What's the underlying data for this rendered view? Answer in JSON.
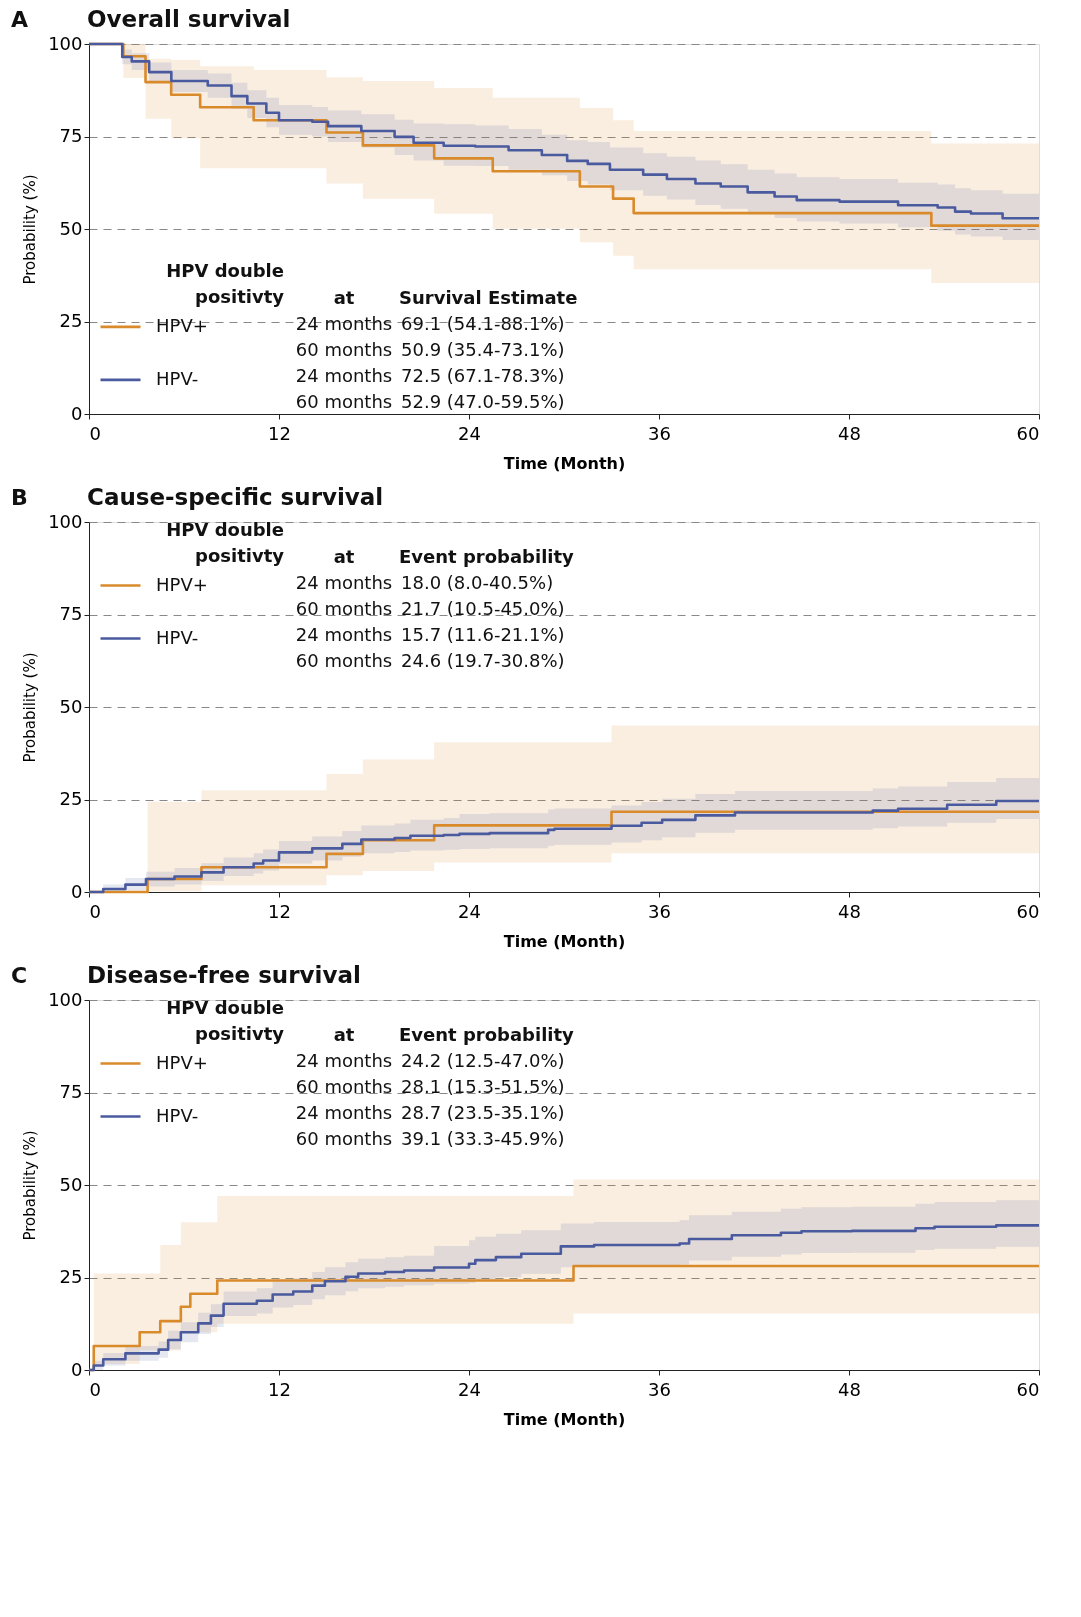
{
  "chart_data": [
    {
      "type": "step",
      "title": "Overall survival",
      "xlabel": "Time (Month)",
      "ylabel": "Probability (%)",
      "legend_title": "HPV double\npositivty",
      "legend": "bottom left",
      "grid": "y",
      "xlim": [
        0,
        60
      ],
      "ylim": [
        0,
        100
      ],
      "xticks": [
        0,
        12,
        24,
        36,
        48,
        60
      ],
      "yticks": [
        0,
        25,
        50,
        75,
        100
      ],
      "annotations": [
        "A",
        "at",
        "Survival Estimate",
        "24 months",
        "69.1 (54.1-88.1%)",
        "60 months",
        "50.9 (35.4-73.1%)",
        "24 months",
        "72.5 (67.1-78.3%)",
        "60 months",
        "52.9 (47.0-59.5%)"
      ],
      "series": [
        {
          "name": "HPV+",
          "color": "#d98a2b",
          "x": [
            0,
            2.17,
            3.57,
            5.19,
            7.02,
            10.4,
            15.0,
            17.3,
            21.8,
            25.5,
            31.0,
            33.1,
            34.4,
            53.2,
            60
          ],
          "values": [
            100,
            96.7,
            89.7,
            86.3,
            82.9,
            79.4,
            76.1,
            72.6,
            69.1,
            65.6,
            61.5,
            58.2,
            54.3,
            50.9,
            50.9
          ],
          "lower": [
            100,
            90.8,
            79.8,
            74.5,
            66.4,
            66.4,
            62.3,
            58.2,
            54.1,
            50.1,
            46.4,
            42.8,
            39.1,
            35.4,
            35.4
          ],
          "upper": [
            100,
            100,
            96,
            95.7,
            94,
            93,
            91,
            90,
            88.1,
            85.5,
            82.7,
            79.4,
            76.5,
            73.1,
            73.1
          ]
        },
        {
          "name": "HPV-",
          "color": "#4a5a9e",
          "x": [
            0,
            2.1,
            2.7,
            3.8,
            5.2,
            7.5,
            9.0,
            10.0,
            11.2,
            12.0,
            14.1,
            15.1,
            17.2,
            19.3,
            20.5,
            22.4,
            24.4,
            26.5,
            28.6,
            30.2,
            31.5,
            32.9,
            35.0,
            36.5,
            38.3,
            39.9,
            41.6,
            43.3,
            44.7,
            47.4,
            51.1,
            53.6,
            54.7,
            55.7,
            57.7,
            60
          ],
          "values": [
            100,
            96.5,
            95.3,
            92.4,
            90.0,
            88.8,
            85.9,
            83.9,
            81.4,
            79.4,
            79.0,
            77.8,
            76.5,
            74.9,
            73.3,
            72.5,
            72.3,
            71.3,
            70.0,
            68.4,
            67.6,
            66.0,
            64.7,
            63.5,
            62.3,
            61.5,
            59.9,
            58.8,
            57.8,
            57.4,
            56.4,
            55.8,
            54.7,
            54.2,
            52.9,
            52.9
          ],
          "lower": [
            100,
            94.5,
            93,
            89.5,
            87,
            85.5,
            82.5,
            80,
            77.5,
            75.5,
            75,
            73.5,
            72,
            70,
            68.5,
            67.1,
            67,
            66,
            64.5,
            63,
            62,
            60.5,
            59,
            58,
            56.5,
            55.5,
            54,
            53,
            52,
            51.5,
            50.5,
            49.5,
            48.5,
            48,
            47.0,
            47.0
          ],
          "upper": [
            100,
            98.5,
            97.5,
            95,
            93,
            92,
            89.5,
            87.5,
            85.5,
            83.5,
            83,
            82,
            81,
            79.5,
            78.5,
            78.3,
            78,
            77,
            75.5,
            74,
            73.5,
            72,
            70.5,
            69.5,
            68.5,
            67.5,
            66,
            65,
            64,
            63.5,
            62.5,
            62,
            61,
            60.5,
            59.5,
            59.5
          ]
        }
      ]
    },
    {
      "type": "step",
      "title": "Cause-specific survival",
      "xlabel": "Time (Month)",
      "ylabel": "Probability (%)",
      "legend_title": "HPV double\npositivty",
      "legend": "top left",
      "grid": "y",
      "xlim": [
        0,
        60
      ],
      "ylim": [
        0,
        100
      ],
      "xticks": [
        0,
        12,
        24,
        36,
        48,
        60
      ],
      "yticks": [
        0,
        25,
        50,
        75,
        100
      ],
      "annotations": [
        "B",
        "at",
        "Event probability",
        "24 months",
        "18.0 (8.0-40.5%)",
        "60 months",
        "21.7 (10.5-45.0%)",
        "24 months",
        "15.7 (11.6-21.1%)",
        "60 months",
        "24.6 (19.7-30.8%)"
      ],
      "series": [
        {
          "name": "HPV+",
          "color": "#d98a2b",
          "x": [
            0,
            3.7,
            7.1,
            15.0,
            17.3,
            21.8,
            33.0,
            60
          ],
          "values": [
            0,
            3.5,
            6.7,
            10.3,
            14.0,
            18.0,
            21.7,
            21.7
          ],
          "lower": [
            0,
            0.2,
            1.8,
            4.5,
            5.7,
            8.0,
            10.5,
            10.5
          ],
          "upper": [
            0,
            24.4,
            27.5,
            31.9,
            35.8,
            40.5,
            45.0,
            45.0
          ]
        },
        {
          "name": "HPV-",
          "color": "#4a5a9e",
          "x": [
            0,
            0.9,
            2.3,
            3.6,
            5.4,
            7.1,
            8.5,
            10.4,
            11.0,
            12.0,
            14.1,
            16.0,
            17.2,
            19.3,
            20.3,
            22.4,
            23.4,
            25.3,
            29.0,
            29.4,
            33.0,
            34.9,
            36.2,
            38.3,
            40.8,
            49.5,
            51.1,
            54.2,
            57.3,
            60
          ],
          "values": [
            0,
            0.8,
            2.0,
            3.5,
            4.2,
            5.3,
            6.7,
            7.7,
            8.5,
            10.7,
            11.8,
            13.0,
            14.2,
            14.6,
            15.2,
            15.4,
            15.7,
            15.9,
            16.8,
            17.1,
            17.9,
            18.7,
            19.5,
            20.7,
            21.5,
            22.0,
            22.5,
            23.6,
            24.6,
            24.6
          ],
          "lower": [
            0,
            0,
            0.5,
            1.5,
            2,
            3,
            4.3,
            5,
            5.8,
            7.7,
            8.5,
            9.5,
            10.5,
            10.8,
            11.2,
            11.4,
            11.6,
            11.8,
            12.5,
            12.8,
            13.4,
            14,
            14.8,
            16,
            16.8,
            17.2,
            17.7,
            18.7,
            19.7,
            19.7
          ],
          "upper": [
            0,
            2,
            3.8,
            5.5,
            6.5,
            7.8,
            9.3,
            10.5,
            11.5,
            13.8,
            15,
            16.5,
            18,
            18.5,
            19.5,
            20,
            21.1,
            21.3,
            22.3,
            22.6,
            23.4,
            24.3,
            25.2,
            26.5,
            27.3,
            28,
            28.5,
            29.7,
            30.8,
            30.8
          ]
        }
      ]
    },
    {
      "type": "step",
      "title": "Disease-free survival",
      "xlabel": "Time (Month)",
      "ylabel": "Probability (%)",
      "legend_title": "HPV double\npositivty",
      "legend": "top left",
      "grid": "y",
      "xlim": [
        0,
        60
      ],
      "ylim": [
        0,
        100
      ],
      "xticks": [
        0,
        12,
        24,
        36,
        48,
        60
      ],
      "yticks": [
        0,
        25,
        50,
        75,
        100
      ],
      "annotations": [
        "C",
        "at",
        "Event probability",
        "24 months",
        "24.2 (12.5-47.0%)",
        "60 months",
        "28.1 (15.3-51.5%)",
        "24 months",
        "28.7 (23.5-35.1%)",
        "60 months",
        "39.1 (33.3-45.9%)"
      ],
      "series": [
        {
          "name": "HPV+",
          "color": "#d98a2b",
          "x": [
            0,
            0.3,
            3.2,
            4.5,
            5.8,
            6.4,
            8.1,
            30.6,
            60
          ],
          "values": [
            0,
            6.5,
            10.2,
            13.2,
            17.1,
            20.6,
            24.2,
            28.1,
            28.1
          ],
          "lower": [
            0,
            1.6,
            5.3,
            5.3,
            10.2,
            10.2,
            12.5,
            15.3,
            15.3
          ],
          "upper": [
            0,
            26.1,
            26.1,
            33.8,
            39.9,
            39.9,
            47.0,
            51.5,
            51.5
          ]
        },
        {
          "name": "HPV-",
          "color": "#4a5a9e",
          "x": [
            0,
            0.3,
            0.9,
            2.3,
            4.4,
            5.0,
            5.8,
            6.9,
            7.7,
            8.5,
            10.6,
            11.6,
            12.9,
            14.1,
            14.9,
            16.2,
            17.0,
            18.7,
            19.9,
            21.8,
            24.0,
            24.4,
            25.7,
            27.3,
            29.8,
            31.9,
            37.3,
            37.9,
            40.6,
            43.7,
            45.0,
            48.2,
            52.2,
            53.4,
            57.3,
            60
          ],
          "values": [
            0,
            1.2,
            2.9,
            4.5,
            5.5,
            8.1,
            10.2,
            12.6,
            14.7,
            17.9,
            18.7,
            20.4,
            21.2,
            22.8,
            24.0,
            25.2,
            26.1,
            26.5,
            26.9,
            27.7,
            28.7,
            29.7,
            30.5,
            31.4,
            33.4,
            33.8,
            34.2,
            35.4,
            36.4,
            37.1,
            37.5,
            37.6,
            38.3,
            38.7,
            39.1,
            39.1
          ],
          "lower": [
            0,
            0,
            1.2,
            2.5,
            3.3,
            5.6,
            7.5,
            9.7,
            11.6,
            14.6,
            15.3,
            16.9,
            17.6,
            19.1,
            20.2,
            21.3,
            22.1,
            22.5,
            22.9,
            23.3,
            23.5,
            24.4,
            25.1,
            26,
            27.8,
            28.2,
            28.5,
            29.6,
            30.6,
            31.2,
            31.6,
            31.7,
            32.4,
            32.8,
            33.3,
            33.3
          ],
          "upper": [
            0,
            2.5,
            4.6,
            6.5,
            7.7,
            10.6,
            12.9,
            15.5,
            17.8,
            21.2,
            22.1,
            23.9,
            24.8,
            26.5,
            27.8,
            29.1,
            30.1,
            30.5,
            30.9,
            33.5,
            35.1,
            36.0,
            36.8,
            37.8,
            39.6,
            40,
            40.5,
            41.8,
            42.8,
            43.6,
            44.0,
            44.1,
            44.9,
            45.4,
            45.9,
            45.9
          ]
        }
      ]
    }
  ]
}
